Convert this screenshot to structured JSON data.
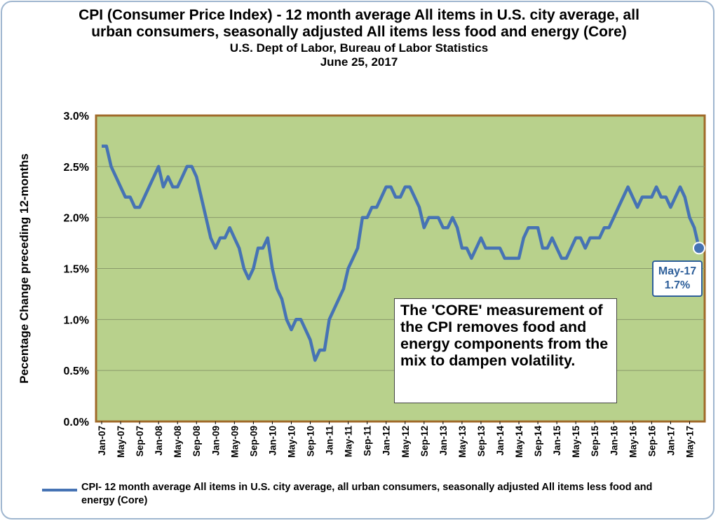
{
  "chart_data": {
    "type": "line",
    "title": "CPI (Consumer Price Index) - 12 month average All items in U.S. city average, all urban consumers, seasonally adjusted All items less food and energy (Core)",
    "subtitle": "U.S. Dept of Labor, Bureau of Labor Statistics",
    "date": "June 25, 2017",
    "ylabel": "Pecentage Change preceding 12-months",
    "xlabel": "",
    "ylim": [
      0,
      3
    ],
    "yticks": [
      "0.0%",
      "0.5%",
      "1.0%",
      "1.5%",
      "2.0%",
      "2.5%",
      "3.0%"
    ],
    "xticks": [
      "Jan-07",
      "May-07",
      "Sep-07",
      "Jan-08",
      "May-08",
      "Sep-08",
      "Jan-09",
      "May-09",
      "Sep-09",
      "Jan-10",
      "May-10",
      "Sep-10",
      "Jan-11",
      "May-11",
      "Sep-11",
      "Jan-12",
      "May-12",
      "Sep-12",
      "Jan-13",
      "May-13",
      "Sep-13",
      "Jan-14",
      "May-14",
      "Sep-14",
      "Jan-15",
      "May-15",
      "Sep-15",
      "Jan-16",
      "May-16",
      "Sep-16",
      "Jan-17",
      "May-17"
    ],
    "series": [
      {
        "name": "CPI- 12 month average All items in U.S. city average, all urban consumers, seasonally adjusted All items less food and energy (Core)",
        "color": "#4673b4",
        "values": [
          2.7,
          2.7,
          2.5,
          2.4,
          2.3,
          2.2,
          2.2,
          2.1,
          2.1,
          2.2,
          2.3,
          2.4,
          2.5,
          2.3,
          2.4,
          2.3,
          2.3,
          2.4,
          2.5,
          2.5,
          2.4,
          2.2,
          2.0,
          1.8,
          1.7,
          1.8,
          1.8,
          1.9,
          1.8,
          1.7,
          1.5,
          1.4,
          1.5,
          1.7,
          1.7,
          1.8,
          1.5,
          1.3,
          1.2,
          1.0,
          0.9,
          1.0,
          1.0,
          0.9,
          0.8,
          0.6,
          0.7,
          0.7,
          1.0,
          1.1,
          1.2,
          1.3,
          1.5,
          1.6,
          1.7,
          2.0,
          2.0,
          2.1,
          2.1,
          2.2,
          2.3,
          2.3,
          2.2,
          2.2,
          2.3,
          2.3,
          2.2,
          2.1,
          1.9,
          2.0,
          2.0,
          2.0,
          1.9,
          1.9,
          2.0,
          1.9,
          1.7,
          1.7,
          1.6,
          1.7,
          1.8,
          1.7,
          1.7,
          1.7,
          1.7,
          1.6,
          1.6,
          1.6,
          1.6,
          1.8,
          1.9,
          1.9,
          1.9,
          1.7,
          1.7,
          1.8,
          1.7,
          1.6,
          1.6,
          1.7,
          1.8,
          1.8,
          1.7,
          1.8,
          1.8,
          1.8,
          1.9,
          1.9,
          2.0,
          2.1,
          2.2,
          2.3,
          2.2,
          2.1,
          2.2,
          2.2,
          2.2,
          2.3,
          2.2,
          2.2,
          2.1,
          2.2,
          2.3,
          2.2,
          2.0,
          1.9,
          1.7
        ]
      }
    ],
    "annotation": "The 'CORE' measurement of the CPI removes food and energy components from the mix to dampen volatility.",
    "callout": {
      "label": "May-17",
      "value": "1.7%"
    },
    "colors": {
      "plot_bg": "#b8d18c",
      "plot_border": "#a06a2a",
      "line": "#4673b4",
      "grid": "#8a9a6a"
    },
    "grid": true,
    "legend": "bottom"
  }
}
